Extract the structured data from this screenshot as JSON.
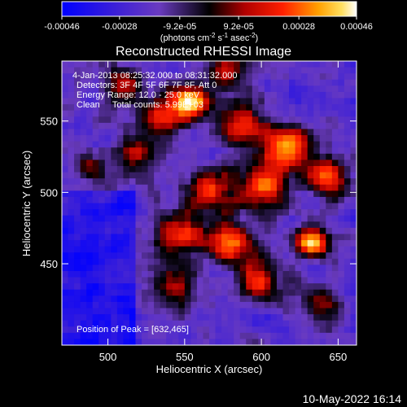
{
  "chart_data": {
    "type": "heatmap",
    "title": "Reconstructed RHESSI Image",
    "xlabel": "Heliocentric X (arcsec)",
    "ylabel": "Heliocentric Y (arcsec)",
    "xlim": [
      470,
      662
    ],
    "ylim": [
      393,
      592
    ],
    "x_ticks": [
      500,
      550,
      600,
      650
    ],
    "y_ticks": [
      450,
      500,
      550
    ],
    "colorbar": {
      "label_html": "(photons cm<sup>-2</sup> s<sup>-1</sup> asec<sup>-2</sup>)",
      "label_parts": [
        "(photons cm",
        "-2",
        " s",
        "-1",
        " asec",
        "-2",
        ")"
      ],
      "range": [
        -0.00046,
        0.00046
      ],
      "tick_labels": [
        "-0.00046",
        "-0.00028",
        "-9.2e-05",
        "9.2e-05",
        "0.00028",
        "0.00046"
      ],
      "tick_values": [
        -0.00046,
        -0.00028,
        -9.2e-05,
        9.2e-05,
        0.00028,
        0.00046
      ],
      "colormap": "rhessi-blue-purple-black-red-yellow-white"
    },
    "annotations": [
      "4-Jan-2013 08:25:32.000 to 08:31:32.000",
      "Detectors: 3F 4F 5F 6F 7F 8F, Att 0",
      "Energy Range: 12.0 - 25.0 keV",
      "Clean     Total counts: 5.99E+03"
    ],
    "peak_label": "Position of Peak = [632,465]",
    "peak_position": [
      632,
      465
    ],
    "sources": [
      {
        "x": 632,
        "y": 465,
        "amp": 1.0,
        "sigma": 7
      },
      {
        "x": 555,
        "y": 562,
        "amp": 0.95,
        "sigma": 9
      },
      {
        "x": 535,
        "y": 555,
        "amp": 0.55,
        "sigma": 10
      },
      {
        "x": 588,
        "y": 548,
        "amp": 0.6,
        "sigma": 11
      },
      {
        "x": 618,
        "y": 532,
        "amp": 0.7,
        "sigma": 10
      },
      {
        "x": 640,
        "y": 510,
        "amp": 0.75,
        "sigma": 9
      },
      {
        "x": 600,
        "y": 505,
        "amp": 0.7,
        "sigma": 12
      },
      {
        "x": 565,
        "y": 500,
        "amp": 0.55,
        "sigma": 12
      },
      {
        "x": 545,
        "y": 470,
        "amp": 0.6,
        "sigma": 11
      },
      {
        "x": 580,
        "y": 465,
        "amp": 0.75,
        "sigma": 10
      },
      {
        "x": 600,
        "y": 440,
        "amp": 0.55,
        "sigma": 11
      },
      {
        "x": 545,
        "y": 435,
        "amp": 0.4,
        "sigma": 12
      },
      {
        "x": 510,
        "y": 575,
        "amp": 0.45,
        "sigma": 10
      },
      {
        "x": 490,
        "y": 515,
        "amp": 0.35,
        "sigma": 9
      },
      {
        "x": 640,
        "y": 420,
        "amp": 0.45,
        "sigma": 10
      },
      {
        "x": 520,
        "y": 525,
        "amp": 0.45,
        "sigma": 10
      },
      {
        "x": 580,
        "y": 585,
        "amp": 0.4,
        "sigma": 10
      }
    ]
  },
  "timestamp": "10-May-2022 16:14"
}
